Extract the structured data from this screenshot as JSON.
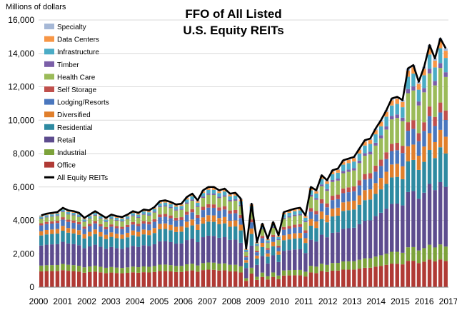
{
  "chart_data": {
    "type": "bar",
    "title_lines": [
      "FFO of All Listed",
      "U.S. Equity REITs"
    ],
    "unit_label": "Millions of dollars",
    "ylim": [
      0,
      16000
    ],
    "yticks": [
      0,
      2000,
      4000,
      6000,
      8000,
      10000,
      12000,
      14000,
      16000
    ],
    "ytick_labels": [
      "0",
      "2,000",
      "4,000",
      "6,000",
      "8,000",
      "10,000",
      "12,000",
      "14,000",
      "16,000"
    ],
    "xtick_labels": [
      "2000",
      "2001",
      "2002",
      "2003",
      "2004",
      "2005",
      "2006",
      "2007",
      "2008",
      "2009",
      "2010",
      "2011",
      "2012",
      "2013",
      "2014",
      "2015",
      "2016",
      "2017"
    ],
    "grid": true,
    "stacked": true,
    "periods_per_year": 4,
    "legend_position": "top-left",
    "series": [
      {
        "name": "Office",
        "color": "#b03a35"
      },
      {
        "name": "Industrial",
        "color": "#7ca23a"
      },
      {
        "name": "Retail",
        "color": "#5d4c8e"
      },
      {
        "name": "Residential",
        "color": "#2e8aa1"
      },
      {
        "name": "Diversified",
        "color": "#e07f2c"
      },
      {
        "name": "Lodging/Resorts",
        "color": "#4a77be"
      },
      {
        "name": "Self Storage",
        "color": "#c0504d"
      },
      {
        "name": "Health Care",
        "color": "#9bbb59"
      },
      {
        "name": "Timber",
        "color": "#7b5fa8"
      },
      {
        "name": "Infrastructure",
        "color": "#4bacc6"
      },
      {
        "name": "Data Centers",
        "color": "#f79646"
      },
      {
        "name": "Specialty",
        "color": "#a6b8d6"
      }
    ],
    "total_series": {
      "name": "All Equity REITs",
      "color": "#000000",
      "values": [
        4300,
        4400,
        4450,
        4500,
        4750,
        4600,
        4550,
        4450,
        4150,
        4350,
        4550,
        4350,
        4150,
        4350,
        4250,
        4200,
        4350,
        4550,
        4450,
        4650,
        4600,
        4800,
        5150,
        5200,
        5100,
        4950,
        5000,
        5400,
        5600,
        5200,
        5800,
        6000,
        6000,
        5800,
        5900,
        5600,
        5650,
        5300,
        2300,
        5000,
        2700,
        3800,
        2900,
        3900,
        3100,
        4500,
        4600,
        4700,
        4750,
        4300,
        6000,
        5800,
        6700,
        6400,
        7000,
        7100,
        7600,
        7700,
        7800,
        8300,
        8800,
        8900,
        9500,
        10000,
        10600,
        11300,
        11400,
        11200,
        13100,
        13300,
        12300,
        13200,
        14500,
        13700,
        14900,
        14300
      ]
    }
  }
}
